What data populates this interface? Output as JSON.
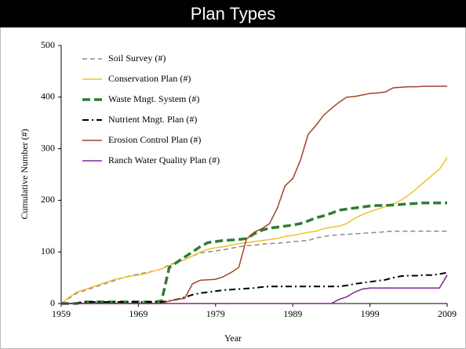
{
  "chart_data": {
    "type": "line",
    "title": "Plan Types",
    "xlabel": "Year",
    "ylabel": "Cumulative Number (#)",
    "x": [
      1959,
      1960,
      1961,
      1962,
      1963,
      1964,
      1965,
      1966,
      1967,
      1968,
      1969,
      1970,
      1971,
      1972,
      1973,
      1974,
      1975,
      1976,
      1977,
      1978,
      1979,
      1980,
      1981,
      1982,
      1983,
      1984,
      1985,
      1986,
      1987,
      1988,
      1989,
      1990,
      1991,
      1992,
      1993,
      1994,
      1995,
      1996,
      1997,
      1998,
      1999,
      2000,
      2001,
      2002,
      2003,
      2004,
      2005,
      2006,
      2007,
      2008,
      2009
    ],
    "series": [
      {
        "name": "Soil Survey (#)",
        "color": "#8c8c8c",
        "style": "dashed",
        "values": [
          0,
          10,
          20,
          25,
          30,
          35,
          40,
          45,
          50,
          54,
          57,
          60,
          63,
          67,
          75,
          80,
          85,
          92,
          98,
          100,
          102,
          104,
          107,
          110,
          112,
          113,
          115,
          116,
          117,
          118,
          120,
          121,
          122,
          127,
          130,
          132,
          133,
          134,
          135,
          136,
          137,
          138,
          139,
          140,
          140,
          140,
          140,
          140,
          140,
          140,
          140
        ]
      },
      {
        "name": "Conservation Plan (#)",
        "color": "#f5c02c",
        "style": "solid",
        "values": [
          0,
          12,
          22,
          27,
          32,
          37,
          42,
          47,
          50,
          53,
          55,
          58,
          63,
          67,
          73,
          80,
          85,
          92,
          100,
          105,
          108,
          110,
          113,
          116,
          118,
          120,
          122,
          124,
          126,
          130,
          132,
          135,
          138,
          140,
          145,
          148,
          150,
          155,
          165,
          172,
          178,
          183,
          188,
          193,
          200,
          210,
          222,
          235,
          248,
          260,
          283
        ]
      },
      {
        "name": "Waste Mngt. System (#)",
        "color": "#2e7d32",
        "style": "bold-dashed",
        "values": [
          0,
          0,
          0,
          3,
          3,
          3,
          3,
          3,
          3,
          3,
          3,
          3,
          3,
          5,
          70,
          80,
          90,
          100,
          110,
          118,
          120,
          122,
          123,
          124,
          126,
          135,
          142,
          146,
          148,
          150,
          152,
          155,
          160,
          166,
          170,
          175,
          181,
          183,
          185,
          187,
          189,
          190,
          190,
          191,
          192,
          193,
          194,
          195,
          195,
          195,
          195
        ]
      },
      {
        "name": "Nutrient Mngt. Plan (#)",
        "color": "#000000",
        "style": "dashdot",
        "values": [
          0,
          0,
          0,
          3,
          3,
          3,
          3,
          3,
          3,
          3,
          3,
          3,
          3,
          3,
          5,
          8,
          12,
          17,
          20,
          22,
          24,
          26,
          27,
          28,
          29,
          30,
          32,
          33,
          33,
          33,
          33,
          33,
          33,
          33,
          33,
          33,
          33,
          35,
          38,
          40,
          42,
          44,
          46,
          50,
          53,
          54,
          54,
          55,
          55,
          57,
          60
        ]
      },
      {
        "name": "Erosion Control Plan (#)",
        "color": "#a0442a",
        "style": "solid",
        "values": [
          0,
          0,
          0,
          0,
          0,
          0,
          0,
          0,
          0,
          0,
          0,
          0,
          0,
          0,
          5,
          8,
          10,
          38,
          45,
          46,
          47,
          52,
          60,
          70,
          125,
          138,
          145,
          155,
          185,
          228,
          242,
          278,
          328,
          345,
          365,
          378,
          390,
          400,
          401,
          404,
          407,
          408,
          410,
          418,
          419,
          420,
          420,
          421,
          421,
          421,
          421
        ]
      },
      {
        "name": "Ranch Water Quality Plan (#)",
        "color": "#7b2a8a",
        "style": "solid",
        "values": [
          0,
          0,
          0,
          0,
          0,
          0,
          0,
          0,
          0,
          0,
          0,
          0,
          0,
          0,
          0,
          0,
          0,
          0,
          0,
          0,
          0,
          0,
          0,
          0,
          0,
          0,
          0,
          0,
          0,
          0,
          0,
          0,
          0,
          0,
          0,
          0,
          8,
          13,
          22,
          28,
          30,
          30,
          30,
          30,
          30,
          30,
          30,
          30,
          30,
          30,
          55
        ]
      }
    ],
    "xlim": [
      1959,
      2009
    ],
    "xticks": [
      1959,
      1969,
      1979,
      1989,
      1999,
      2009
    ],
    "ylim": [
      0,
      500
    ],
    "yticks": [
      0,
      100,
      200,
      300,
      400,
      500
    ],
    "legend": "top-left"
  }
}
